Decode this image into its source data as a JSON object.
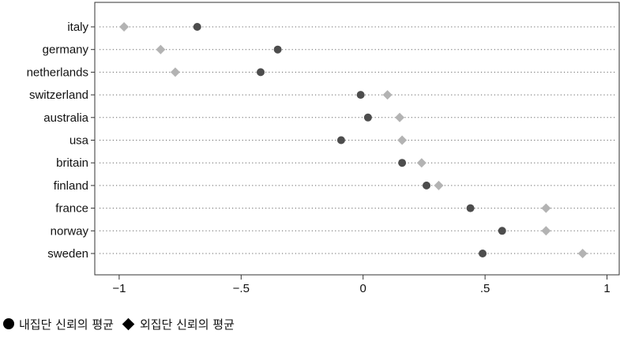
{
  "chart_data": {
    "type": "scatter",
    "subtype": "dot-plot",
    "categories": [
      "italy",
      "germany",
      "netherlands",
      "switzerland",
      "australia",
      "usa",
      "britain",
      "finland",
      "france",
      "norway",
      "sweden"
    ],
    "series": [
      {
        "name": "내집단 신뢰의 평균",
        "marker": "circle",
        "color": "#4d4d4d",
        "values": [
          -0.68,
          -0.35,
          -0.42,
          -0.01,
          0.02,
          -0.09,
          0.16,
          0.26,
          0.44,
          0.57,
          0.49
        ]
      },
      {
        "name": "외집단 신뢰의 평균",
        "marker": "diamond",
        "color": "#b3b3b3",
        "values": [
          -0.98,
          -0.83,
          -0.77,
          0.1,
          0.15,
          0.16,
          0.24,
          0.31,
          0.75,
          0.75,
          0.9
        ]
      }
    ],
    "xlim": [
      -1.1,
      1.05
    ],
    "xticks": [
      -1,
      -0.5,
      0,
      0.5,
      1
    ],
    "xtick_labels": [
      "−1",
      "−.5",
      "0",
      ".5",
      "1"
    ],
    "xlabel": "",
    "ylabel": "",
    "title": "",
    "grid": "dotted horizontal guide per category",
    "legend": "bottom-left"
  },
  "legend": {
    "items": [
      {
        "label": "내집단 신뢰의 평균",
        "marker": "circle"
      },
      {
        "label": "외집단 신뢰의 평균",
        "marker": "diamond"
      }
    ]
  }
}
